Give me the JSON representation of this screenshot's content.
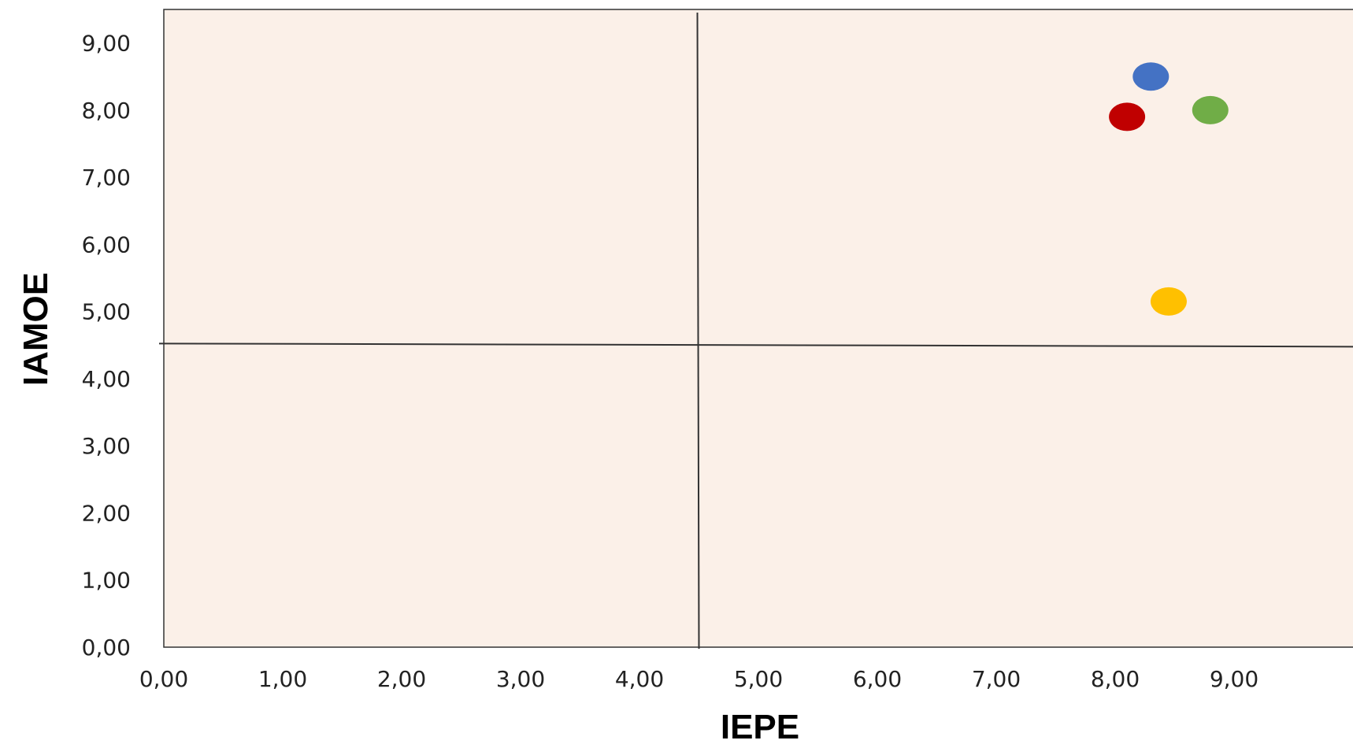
{
  "chart_data": {
    "type": "scatter",
    "title": "",
    "xlabel": "IEPE",
    "ylabel": "IAMOE",
    "xlim": [
      0,
      10
    ],
    "ylim": [
      0,
      9.5
    ],
    "x_ticks": [
      "0,00",
      "1,00",
      "2,00",
      "3,00",
      "4,00",
      "5,00",
      "6,00",
      "7,00",
      "8,00",
      "9,00"
    ],
    "y_ticks": [
      "0,00",
      "1,00",
      "2,00",
      "3,00",
      "4,00",
      "5,00",
      "6,00",
      "7,00",
      "8,00",
      "9,00"
    ],
    "reference_lines": {
      "x": 4.5,
      "y": 4.5
    },
    "grid": false,
    "legend": "none",
    "plot_background": "#fbf0e8",
    "points": [
      {
        "x": 8.3,
        "y": 8.5,
        "color": "#4472c4"
      },
      {
        "x": 8.1,
        "y": 7.9,
        "color": "#c00000"
      },
      {
        "x": 8.8,
        "y": 8.0,
        "color": "#70ad47"
      },
      {
        "x": 8.45,
        "y": 5.15,
        "color": "#ffc000"
      }
    ]
  }
}
